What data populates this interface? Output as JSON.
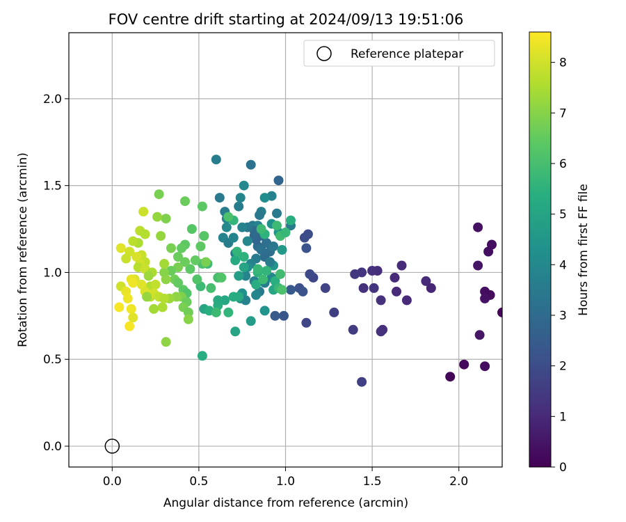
{
  "chart_data": {
    "type": "scatter",
    "title": "FOV centre drift starting at 2024/09/13 19:51:06",
    "xlabel": "Angular distance from reference (arcmin)",
    "ylabel": "Rotation from reference (arcmin)",
    "xlim": [
      -0.25,
      2.25
    ],
    "ylim": [
      -0.12,
      2.38
    ],
    "xticks": [
      "0.0",
      "0.5",
      "1.0",
      "1.5",
      "2.0"
    ],
    "yticks": [
      "0.0",
      "0.5",
      "1.0",
      "1.5",
      "2.0"
    ],
    "grid": true,
    "legend": {
      "placement": "top-right",
      "entries": [
        "Reference platepar"
      ]
    },
    "reference_point": {
      "x": 0.0,
      "y": 0.0
    },
    "colorbar": {
      "label": "Hours from first FF file",
      "colormap": "viridis",
      "range": [
        0,
        8.6
      ],
      "ticks": [
        "0",
        "1",
        "2",
        "3",
        "4",
        "5",
        "6",
        "7",
        "8"
      ]
    },
    "points": [
      [
        2.11,
        1.26,
        0.4
      ],
      [
        2.17,
        1.12,
        0.35
      ],
      [
        2.19,
        1.16,
        0.3
      ],
      [
        2.11,
        1.04,
        0.5
      ],
      [
        2.15,
        0.89,
        0.3
      ],
      [
        2.18,
        0.87,
        0.25
      ],
      [
        2.15,
        0.85,
        0.4
      ],
      [
        2.25,
        0.77,
        0.1
      ],
      [
        2.12,
        0.64,
        0.5
      ],
      [
        2.03,
        0.47,
        0.2
      ],
      [
        2.15,
        0.46,
        0.3
      ],
      [
        1.95,
        0.4,
        0.1
      ],
      [
        1.67,
        1.04,
        1.0
      ],
      [
        1.81,
        0.95,
        1.0
      ],
      [
        1.84,
        0.91,
        0.9
      ],
      [
        1.7,
        0.84,
        1.0
      ],
      [
        1.64,
        0.89,
        1.0
      ],
      [
        1.63,
        0.97,
        1.0
      ],
      [
        1.53,
        1.01,
        1.1
      ],
      [
        1.5,
        1.01,
        1.2
      ],
      [
        1.44,
        1.0,
        1.3
      ],
      [
        1.4,
        0.99,
        1.4
      ],
      [
        1.45,
        0.91,
        1.2
      ],
      [
        1.51,
        0.91,
        1.3
      ],
      [
        1.55,
        0.84,
        1.2
      ],
      [
        1.56,
        0.67,
        1.1
      ],
      [
        1.55,
        0.66,
        1.2
      ],
      [
        1.39,
        0.67,
        1.5
      ],
      [
        1.44,
        0.37,
        1.6
      ],
      [
        1.28,
        0.77,
        1.6
      ],
      [
        1.23,
        0.91,
        1.7
      ],
      [
        1.16,
        0.97,
        1.8
      ],
      [
        1.14,
        0.99,
        1.9
      ],
      [
        1.12,
        0.71,
        1.8
      ],
      [
        1.13,
        1.22,
        2.0
      ],
      [
        1.11,
        1.2,
        2.0
      ],
      [
        1.12,
        1.14,
        2.2
      ],
      [
        1.08,
        0.91,
        2.1
      ],
      [
        1.1,
        0.89,
        2.2
      ],
      [
        1.03,
        0.9,
        2.4
      ],
      [
        0.99,
        0.75,
        2.3
      ],
      [
        0.94,
        0.75,
        2.4
      ],
      [
        0.96,
        1.53,
        2.8
      ],
      [
        0.8,
        1.62,
        3.2
      ],
      [
        0.6,
        1.65,
        3.6
      ],
      [
        1.03,
        1.27,
        3.5
      ],
      [
        0.97,
        1.22,
        3.3
      ],
      [
        0.95,
        1.34,
        3.5
      ],
      [
        0.92,
        1.44,
        3.8
      ],
      [
        0.88,
        1.43,
        4.2
      ],
      [
        0.86,
        1.35,
        3.6
      ],
      [
        0.85,
        1.33,
        3.4
      ],
      [
        0.81,
        1.27,
        3.5
      ],
      [
        0.84,
        1.27,
        3.8
      ],
      [
        0.86,
        1.22,
        3.2
      ],
      [
        0.87,
        1.21,
        3.0
      ],
      [
        0.89,
        1.17,
        3.1
      ],
      [
        0.88,
        1.22,
        2.8
      ],
      [
        0.84,
        1.15,
        3.0
      ],
      [
        0.83,
        1.19,
        2.8
      ],
      [
        0.82,
        1.21,
        2.9
      ],
      [
        0.82,
        1.24,
        3.0
      ],
      [
        0.78,
        1.26,
        3.4
      ],
      [
        0.75,
        1.26,
        3.8
      ],
      [
        0.73,
        1.38,
        3.6
      ],
      [
        0.74,
        1.43,
        3.9
      ],
      [
        0.76,
        1.5,
        4.0
      ],
      [
        0.65,
        1.35,
        3.6
      ],
      [
        0.62,
        1.43,
        3.5
      ],
      [
        0.66,
        1.31,
        3.9
      ],
      [
        0.66,
        1.26,
        4.0
      ],
      [
        0.64,
        1.2,
        3.8
      ],
      [
        0.67,
        1.17,
        3.6
      ],
      [
        0.71,
        1.11,
        3.4
      ],
      [
        0.7,
        1.2,
        3.9
      ],
      [
        0.78,
        1.18,
        4.0
      ],
      [
        0.86,
        1.13,
        3.2
      ],
      [
        0.88,
        1.09,
        3.0
      ],
      [
        0.91,
        1.12,
        3.1
      ],
      [
        0.93,
        1.15,
        3.4
      ],
      [
        0.83,
        1.08,
        3.5
      ],
      [
        0.8,
        1.05,
        3.8
      ],
      [
        0.78,
        1.03,
        4.2
      ],
      [
        0.77,
        0.98,
        3.9
      ],
      [
        0.82,
        0.95,
        3.8
      ],
      [
        0.85,
        0.89,
        3.5
      ],
      [
        0.83,
        0.87,
        3.9
      ],
      [
        0.88,
        0.94,
        3.6
      ],
      [
        0.92,
        0.97,
        3.9
      ],
      [
        0.93,
        1.04,
        4.4
      ],
      [
        0.91,
        1.06,
        3.6
      ],
      [
        0.98,
        1.13,
        4.6
      ],
      [
        0.96,
        1.23,
        4.4
      ],
      [
        0.92,
        1.28,
        4.3
      ],
      [
        0.75,
        0.88,
        4.3
      ],
      [
        0.74,
        0.85,
        4.1
      ],
      [
        0.77,
        0.84,
        3.8
      ],
      [
        0.88,
        0.78,
        4.4
      ],
      [
        0.8,
        0.72,
        4.7
      ],
      [
        0.71,
        0.66,
        5.0
      ],
      [
        0.52,
        0.52,
        5.3
      ],
      [
        0.53,
        0.79,
        5.0
      ],
      [
        0.56,
        0.78,
        5.4
      ],
      [
        0.65,
        0.84,
        5.1
      ],
      [
        0.7,
        0.86,
        5.3
      ],
      [
        0.73,
        0.86,
        5.2
      ],
      [
        0.67,
        0.77,
        5.6
      ],
      [
        0.61,
        0.81,
        5.4
      ],
      [
        0.61,
        0.84,
        5.2
      ],
      [
        0.6,
        0.77,
        5.8
      ],
      [
        0.73,
        0.98,
        4.8
      ],
      [
        0.76,
        1.03,
        5.0
      ],
      [
        0.71,
        1.07,
        5.2
      ],
      [
        0.72,
        1.12,
        5.6
      ],
      [
        0.76,
        1.09,
        5.5
      ],
      [
        0.84,
        1.0,
        5.5
      ],
      [
        0.83,
        0.93,
        5.3
      ],
      [
        0.87,
        0.96,
        5.8
      ],
      [
        0.84,
        1.02,
        5.7
      ],
      [
        0.89,
        1.01,
        5.6
      ],
      [
        0.94,
        0.95,
        5.4
      ],
      [
        0.97,
        0.99,
        5.9
      ],
      [
        0.93,
        0.9,
        5.0
      ],
      [
        0.96,
        0.91,
        5.7
      ],
      [
        0.98,
        0.9,
        6.1
      ],
      [
        0.97,
        1.21,
        5.9
      ],
      [
        1.0,
        1.23,
        5.7
      ],
      [
        1.03,
        1.3,
        5.4
      ],
      [
        0.95,
        1.27,
        5.8
      ],
      [
        0.88,
        1.22,
        5.5
      ],
      [
        0.86,
        1.25,
        5.8
      ],
      [
        0.7,
        1.3,
        5.6
      ],
      [
        0.67,
        1.32,
        6.1
      ],
      [
        0.55,
        1.05,
        5.8
      ],
      [
        0.52,
        1.05,
        6.1
      ],
      [
        0.61,
        0.97,
        6.0
      ],
      [
        0.63,
        0.97,
        6.2
      ],
      [
        0.57,
        0.91,
        6.0
      ],
      [
        0.51,
        0.92,
        5.8
      ],
      [
        0.49,
        0.96,
        6.2
      ],
      [
        0.45,
        1.02,
        6.4
      ],
      [
        0.42,
        1.06,
        6.6
      ],
      [
        0.48,
        1.07,
        6.5
      ],
      [
        0.54,
        1.06,
        6.8
      ],
      [
        0.53,
        1.21,
        6.3
      ],
      [
        0.51,
        1.15,
        6.4
      ],
      [
        0.52,
        1.38,
        6.4
      ],
      [
        0.42,
        1.41,
        6.6
      ],
      [
        0.46,
        1.25,
        6.3
      ],
      [
        0.42,
        1.16,
        6.4
      ],
      [
        0.38,
        1.09,
        6.6
      ],
      [
        0.4,
        1.14,
        6.5
      ],
      [
        0.38,
        1.03,
        6.8
      ],
      [
        0.34,
        1.01,
        6.6
      ],
      [
        0.36,
        0.96,
        6.7
      ],
      [
        0.38,
        0.94,
        6.5
      ],
      [
        0.41,
        0.9,
        6.4
      ],
      [
        0.43,
        0.88,
        6.2
      ],
      [
        0.4,
        0.86,
        6.9
      ],
      [
        0.43,
        0.83,
        6.6
      ],
      [
        0.41,
        0.8,
        6.8
      ],
      [
        0.44,
        0.77,
        6.7
      ],
      [
        0.44,
        0.73,
        7.0
      ],
      [
        0.37,
        0.86,
        7.1
      ],
      [
        0.33,
        0.85,
        7.3
      ],
      [
        0.31,
        0.96,
        7.1
      ],
      [
        0.3,
        1.0,
        7.0
      ],
      [
        0.27,
        1.45,
        6.8
      ],
      [
        0.31,
        1.31,
        6.9
      ],
      [
        0.26,
        1.32,
        7.2
      ],
      [
        0.34,
        1.14,
        6.8
      ],
      [
        0.3,
        1.05,
        7.4
      ],
      [
        0.28,
        1.21,
        7.2
      ],
      [
        0.31,
        0.6,
        7.1
      ],
      [
        0.29,
        0.8,
        7.5
      ],
      [
        0.24,
        0.79,
        7.4
      ],
      [
        0.22,
        0.86,
        7.7
      ],
      [
        0.22,
        0.92,
        7.6
      ],
      [
        0.25,
        0.93,
        7.8
      ],
      [
        0.18,
        1.35,
        7.9
      ],
      [
        0.16,
        1.24,
        7.7
      ],
      [
        0.19,
        1.22,
        7.6
      ],
      [
        0.15,
        1.17,
        7.5
      ],
      [
        0.17,
        1.1,
        7.9
      ],
      [
        0.14,
        1.09,
        8.1
      ],
      [
        0.19,
        1.06,
        7.8
      ],
      [
        0.16,
        1.05,
        8.0
      ],
      [
        0.15,
        1.03,
        7.7
      ],
      [
        0.19,
        1.02,
        7.9
      ],
      [
        0.23,
        1.0,
        7.5
      ],
      [
        0.21,
        0.98,
        7.3
      ],
      [
        0.17,
        0.93,
        8.2
      ],
      [
        0.13,
        0.96,
        8.1
      ],
      [
        0.11,
        0.96,
        8.3
      ],
      [
        0.12,
        0.94,
        8.4
      ],
      [
        0.19,
        0.89,
        8.1
      ],
      [
        0.24,
        0.88,
        8.0
      ],
      [
        0.27,
        0.86,
        7.8
      ],
      [
        0.3,
        0.85,
        7.6
      ],
      [
        0.2,
        0.86,
        7.2
      ],
      [
        0.05,
        1.14,
        8.2
      ],
      [
        0.1,
        1.12,
        8.0
      ],
      [
        0.12,
        1.18,
        7.7
      ],
      [
        0.08,
        1.08,
        7.9
      ],
      [
        0.05,
        0.92,
        8.0
      ],
      [
        0.08,
        0.89,
        8.3
      ],
      [
        0.09,
        0.85,
        8.4
      ],
      [
        0.04,
        0.8,
        8.5
      ],
      [
        0.11,
        0.79,
        8.4
      ],
      [
        0.12,
        0.74,
        8.2
      ],
      [
        0.1,
        0.69,
        8.5
      ]
    ]
  }
}
